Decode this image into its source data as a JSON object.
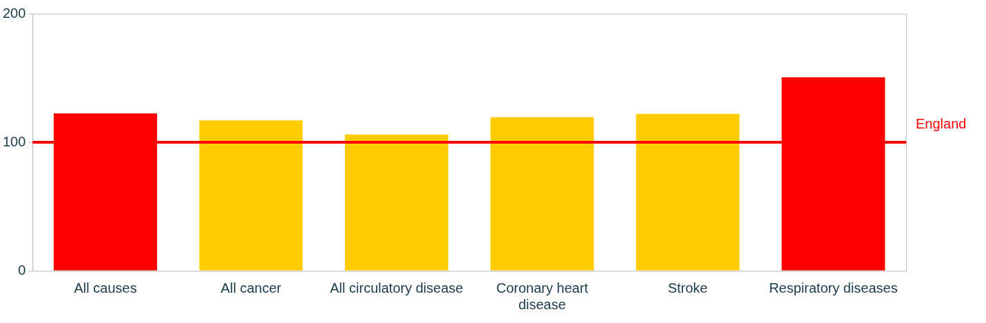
{
  "chart_data": {
    "type": "bar",
    "categories": [
      "All causes",
      "All cancer",
      "All circulatory disease",
      "Coronary heart disease",
      "Stroke",
      "Respiratory diseases"
    ],
    "values": [
      122.5,
      117,
      106,
      119.5,
      122,
      150.5
    ],
    "colors": [
      "#ff0000",
      "#ffcc00",
      "#ffcc00",
      "#ffcc00",
      "#ffcc00",
      "#ff0000"
    ],
    "ylim": [
      0,
      200
    ],
    "yticks": [
      0,
      100,
      200
    ],
    "grid": false,
    "legend": false,
    "ref_lines": [
      {
        "axis": "y",
        "value": 100,
        "label": "England",
        "color": "#ff0000"
      }
    ]
  }
}
